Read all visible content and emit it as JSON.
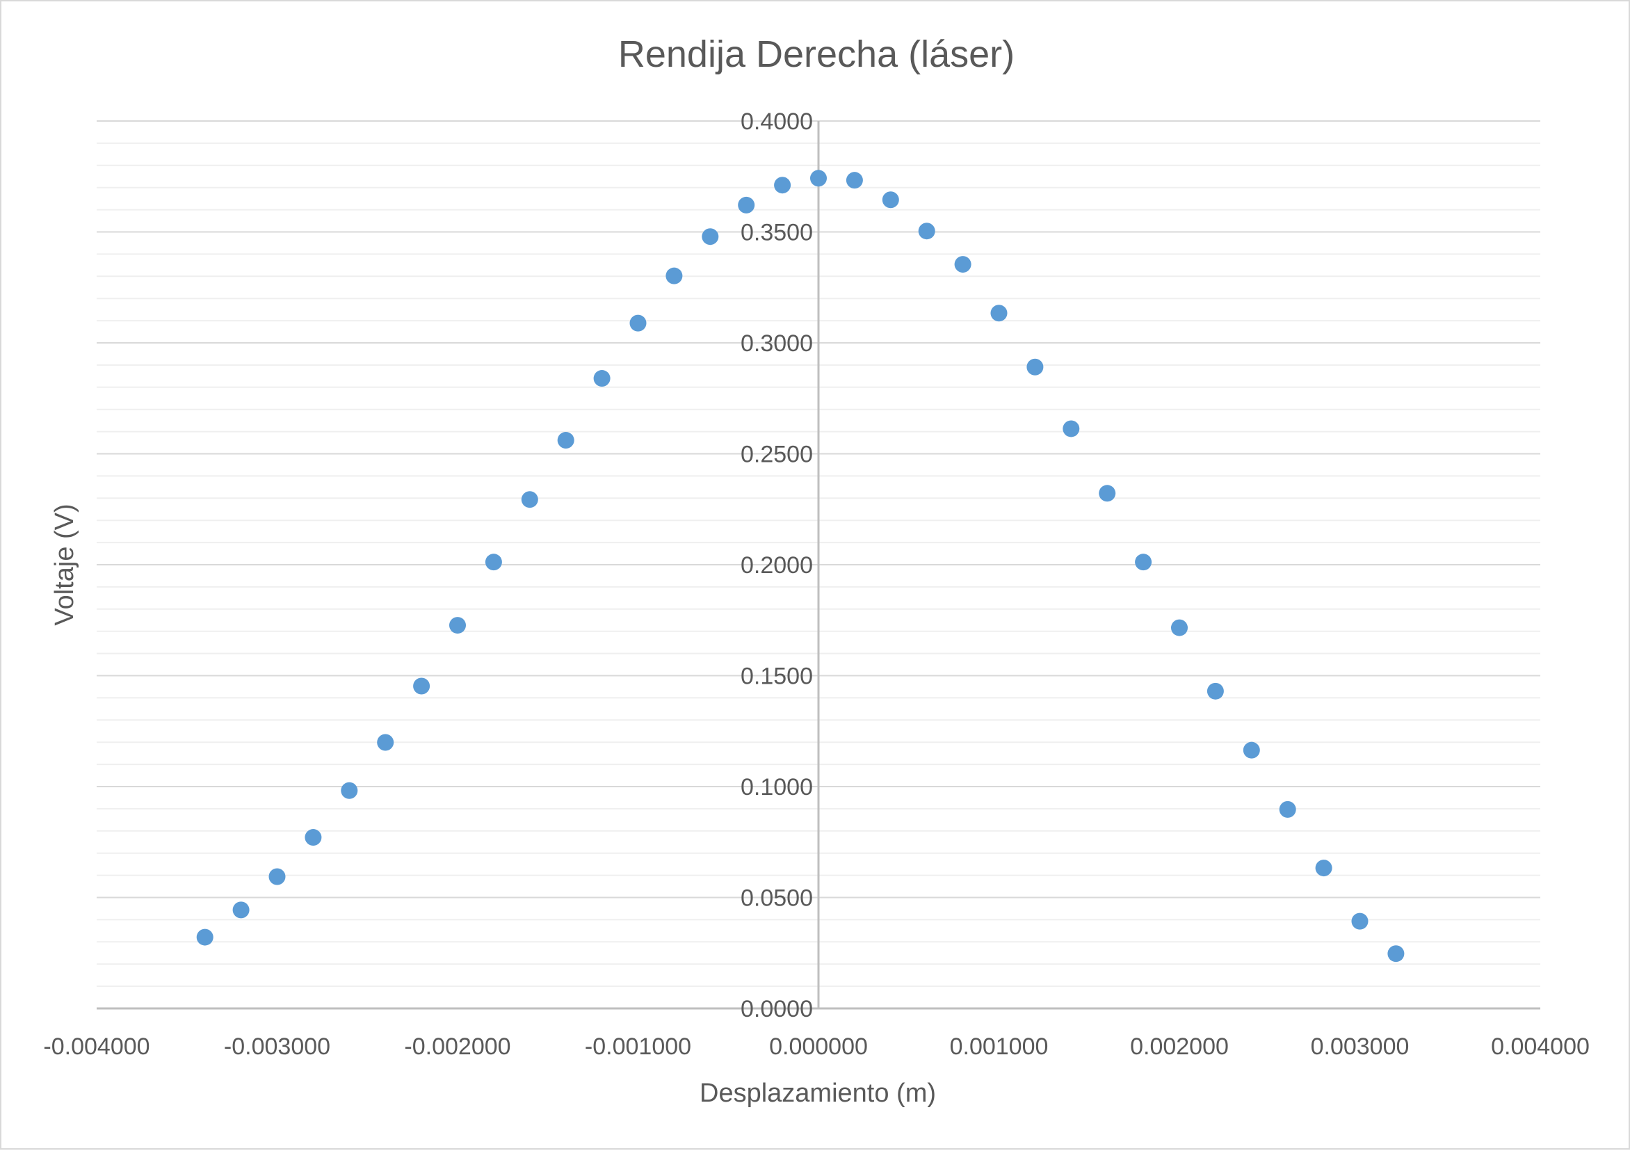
{
  "chart_data": {
    "type": "scatter",
    "title": "Rendija Derecha (láser)",
    "xlabel": "Desplazamiento (m)",
    "ylabel": "Voltaje (V)",
    "xlim": [
      -0.004,
      0.004
    ],
    "ylim": [
      0,
      0.4
    ],
    "x_ticks": [
      "-0.004000",
      "-0.003000",
      "-0.002000",
      "-0.001000",
      "0.000000",
      "0.001000",
      "0.002000",
      "0.003000",
      "0.004000"
    ],
    "y_ticks": [
      "0.0000",
      "0.0500",
      "0.1000",
      "0.1500",
      "0.2000",
      "0.2500",
      "0.3000",
      "0.3500",
      "0.4000"
    ],
    "grid": {
      "major_y": true,
      "minor_y": true
    },
    "legend": "none",
    "marker_color": "#5b9bd5",
    "series": [
      {
        "x": [
          -0.0034,
          -0.0032,
          -0.003,
          -0.0028,
          -0.0026,
          -0.0024,
          -0.0022,
          -0.002,
          -0.0018,
          -0.0016,
          -0.0014,
          -0.0012,
          -0.001,
          -0.0008,
          -0.0006,
          -0.0004,
          -0.0002,
          0.0,
          0.0002,
          0.0004,
          0.0006,
          0.0008,
          0.001,
          0.0012,
          0.0014,
          0.0016,
          0.0018,
          0.002,
          0.0022,
          0.0024,
          0.0026,
          0.0028,
          0.003,
          0.0032
        ],
        "y": [
          0.0321,
          0.0444,
          0.0594,
          0.0771,
          0.0982,
          0.1199,
          0.1453,
          0.1727,
          0.2012,
          0.2294,
          0.2561,
          0.284,
          0.3089,
          0.3302,
          0.3479,
          0.3621,
          0.3711,
          0.3742,
          0.3733,
          0.3645,
          0.3504,
          0.3354,
          0.3134,
          0.2891,
          0.2613,
          0.2322,
          0.2012,
          0.1716,
          0.143,
          0.1164,
          0.0897,
          0.0633,
          0.0393,
          0.0247
        ]
      }
    ]
  }
}
